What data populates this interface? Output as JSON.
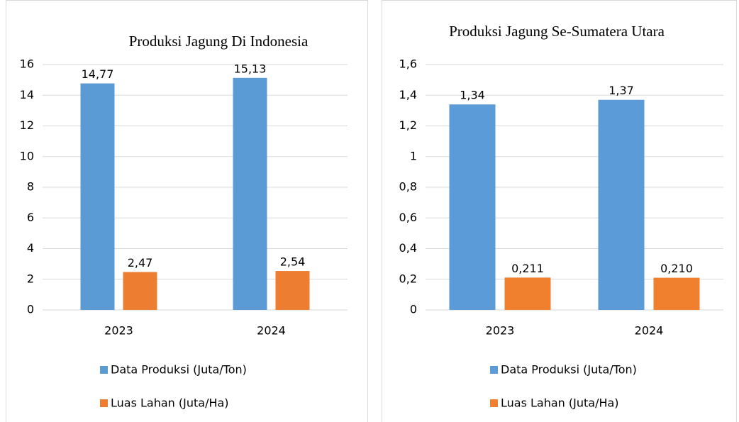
{
  "chart_data": [
    {
      "type": "bar",
      "title": "Produksi Jagung Di Indonesia",
      "categories": [
        "2023",
        "2024"
      ],
      "series": [
        {
          "name": "Data Produksi (Juta/Ton)",
          "color": "#5b9bd5",
          "values": [
            14.77,
            15.13
          ],
          "value_labels": [
            "14,77",
            "15,13"
          ]
        },
        {
          "name": "Luas Lahan (Juta/Ha)",
          "color": "#ed7d31",
          "values": [
            2.47,
            2.54
          ],
          "value_labels": [
            "2,47",
            "2,54"
          ]
        }
      ],
      "ylim": [
        0,
        16
      ],
      "yticks": [
        0,
        2,
        4,
        6,
        8,
        10,
        12,
        14,
        16
      ],
      "grid": true,
      "legend": "bottom"
    },
    {
      "type": "bar",
      "title": "Produksi Jagung Se-Sumatera Utara",
      "categories": [
        "2023",
        "2024"
      ],
      "series": [
        {
          "name": "Data Produksi (Juta/Ton)",
          "color": "#5a9bd8",
          "values": [
            1.34,
            1.37
          ],
          "value_labels": [
            "1,34",
            "1,37"
          ]
        },
        {
          "name": "Luas Lahan (Juta/Ha)",
          "color": "#f07f2e",
          "values": [
            0.211,
            0.21
          ],
          "value_labels": [
            "0,211",
            "0,210"
          ]
        }
      ],
      "ylim": [
        0,
        1.6
      ],
      "yticks": [
        0,
        {
          "value": 0.2,
          "label": "0,2"
        },
        {
          "value": 0.4,
          "label": "0,4"
        },
        {
          "value": 0.6,
          "label": "0,6"
        },
        {
          "value": 0.8,
          "label": "0,8"
        },
        1,
        {
          "value": 1.2,
          "label": "1,2"
        },
        {
          "value": 1.4,
          "label": "1,4"
        },
        {
          "value": 1.6,
          "label": "1,6"
        }
      ],
      "grid": true,
      "legend": "bottom"
    }
  ]
}
